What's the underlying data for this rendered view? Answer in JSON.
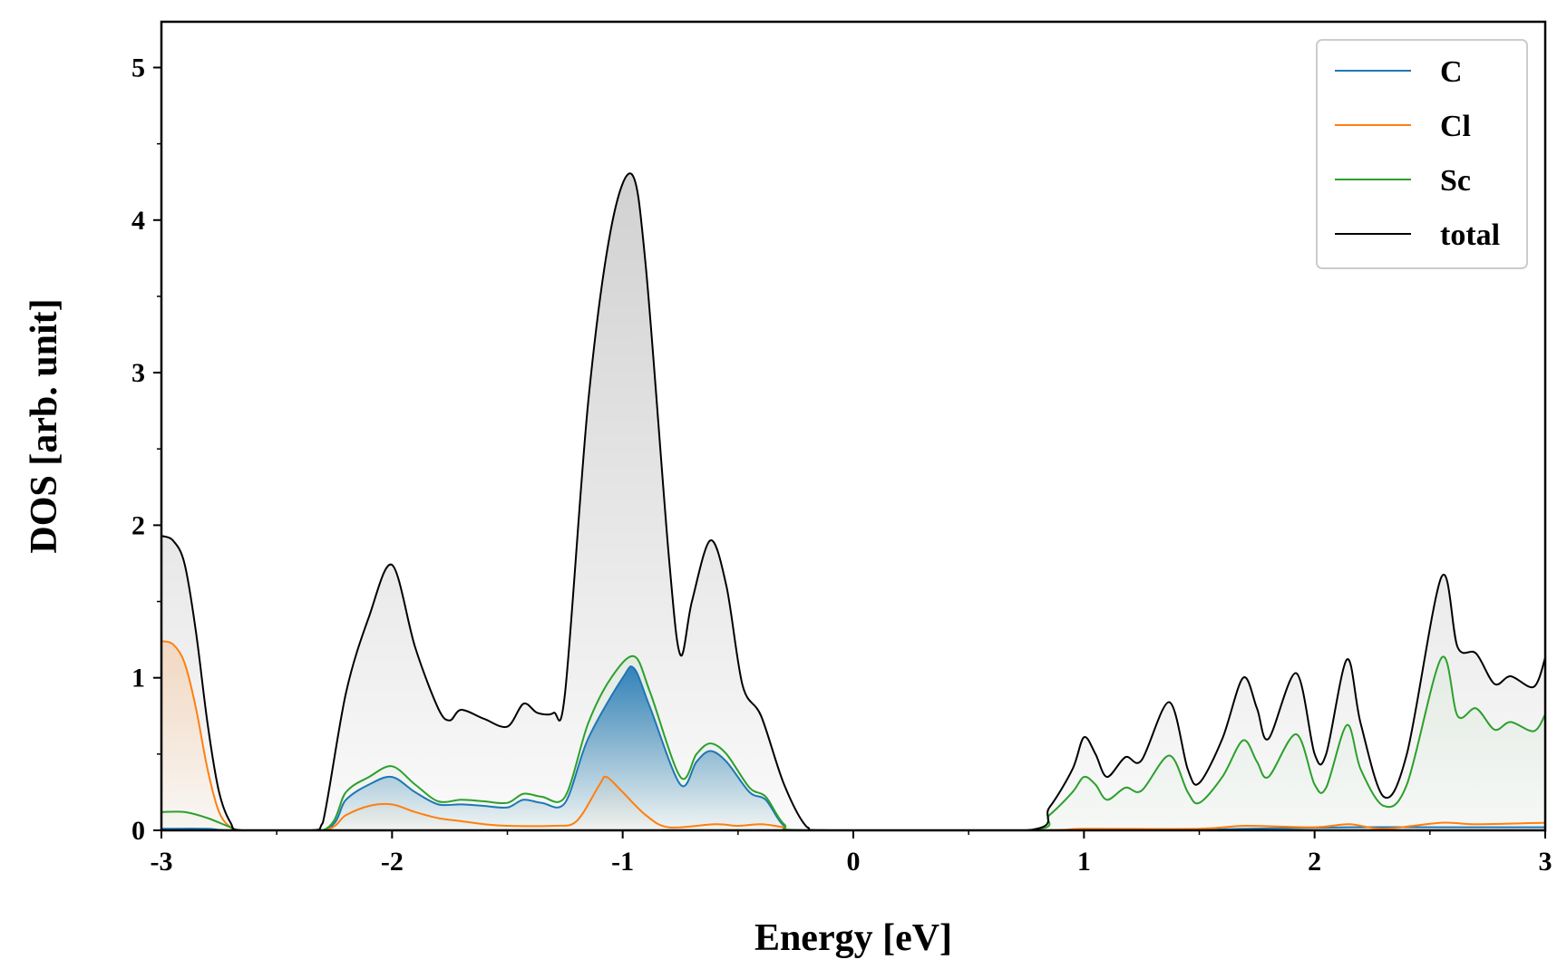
{
  "chart_data": {
    "type": "area",
    "xlabel": "Energy [eV]",
    "ylabel": "DOS [arb. unit]",
    "xlim": [
      -3,
      3
    ],
    "ylim": [
      0,
      5.3
    ],
    "xticks": [
      -3,
      -2,
      -1,
      0,
      1,
      2,
      3
    ],
    "xtick_labels": [
      "-3",
      "-2",
      "-1",
      "0",
      "1",
      "2",
      "3"
    ],
    "yticks": [
      0,
      1,
      2,
      3,
      4,
      5
    ],
    "ytick_labels": [
      "0",
      "1",
      "2",
      "3",
      "4",
      "5"
    ],
    "grid": false,
    "legend_position": "top-right",
    "series": [
      {
        "name": "C",
        "color": "#1f77b4",
        "points": [
          [
            -3.0,
            0.01
          ],
          [
            -2.8,
            0.01
          ],
          [
            -2.7,
            0.0
          ],
          [
            -2.3,
            0.0
          ],
          [
            -2.2,
            0.2
          ],
          [
            -2.1,
            0.3
          ],
          [
            -2.0,
            0.35
          ],
          [
            -1.9,
            0.25
          ],
          [
            -1.8,
            0.17
          ],
          [
            -1.7,
            0.17
          ],
          [
            -1.6,
            0.16
          ],
          [
            -1.5,
            0.15
          ],
          [
            -1.43,
            0.2
          ],
          [
            -1.35,
            0.18
          ],
          [
            -1.25,
            0.18
          ],
          [
            -1.15,
            0.6
          ],
          [
            -1.0,
            1.0
          ],
          [
            -0.95,
            1.06
          ],
          [
            -0.88,
            0.8
          ],
          [
            -0.75,
            0.3
          ],
          [
            -0.68,
            0.45
          ],
          [
            -0.62,
            0.52
          ],
          [
            -0.55,
            0.45
          ],
          [
            -0.45,
            0.25
          ],
          [
            -0.38,
            0.2
          ],
          [
            -0.3,
            0.03
          ],
          [
            -0.2,
            0.0
          ],
          [
            0.8,
            0.0
          ],
          [
            1.0,
            0.0
          ],
          [
            1.4,
            0.0
          ],
          [
            1.7,
            0.01
          ],
          [
            2.15,
            0.02
          ],
          [
            2.55,
            0.02
          ],
          [
            3.0,
            0.02
          ]
        ]
      },
      {
        "name": "Cl",
        "color": "#ff7f0e",
        "points": [
          [
            -3.0,
            1.24
          ],
          [
            -2.95,
            1.22
          ],
          [
            -2.9,
            1.1
          ],
          [
            -2.85,
            0.8
          ],
          [
            -2.8,
            0.4
          ],
          [
            -2.75,
            0.12
          ],
          [
            -2.7,
            0.02
          ],
          [
            -2.65,
            0.0
          ],
          [
            -2.3,
            0.0
          ],
          [
            -2.2,
            0.1
          ],
          [
            -2.1,
            0.16
          ],
          [
            -2.0,
            0.17
          ],
          [
            -1.9,
            0.12
          ],
          [
            -1.8,
            0.08
          ],
          [
            -1.7,
            0.06
          ],
          [
            -1.6,
            0.04
          ],
          [
            -1.5,
            0.03
          ],
          [
            -1.3,
            0.03
          ],
          [
            -1.2,
            0.06
          ],
          [
            -1.1,
            0.3
          ],
          [
            -1.07,
            0.35
          ],
          [
            -1.0,
            0.25
          ],
          [
            -0.9,
            0.1
          ],
          [
            -0.8,
            0.02
          ],
          [
            -0.6,
            0.04
          ],
          [
            -0.5,
            0.03
          ],
          [
            -0.4,
            0.04
          ],
          [
            -0.3,
            0.02
          ],
          [
            -0.2,
            0.0
          ],
          [
            0.8,
            0.0
          ],
          [
            1.0,
            0.01
          ],
          [
            1.5,
            0.01
          ],
          [
            1.7,
            0.03
          ],
          [
            2.0,
            0.02
          ],
          [
            2.15,
            0.04
          ],
          [
            2.3,
            0.01
          ],
          [
            2.55,
            0.05
          ],
          [
            2.7,
            0.04
          ],
          [
            3.0,
            0.05
          ]
        ]
      },
      {
        "name": "Sc",
        "color": "#2ca02c",
        "points": [
          [
            -3.0,
            0.12
          ],
          [
            -2.9,
            0.12
          ],
          [
            -2.8,
            0.08
          ],
          [
            -2.7,
            0.02
          ],
          [
            -2.65,
            0.0
          ],
          [
            -2.3,
            0.0
          ],
          [
            -2.2,
            0.25
          ],
          [
            -2.1,
            0.35
          ],
          [
            -2.0,
            0.42
          ],
          [
            -1.9,
            0.3
          ],
          [
            -1.8,
            0.19
          ],
          [
            -1.7,
            0.2
          ],
          [
            -1.6,
            0.19
          ],
          [
            -1.5,
            0.18
          ],
          [
            -1.43,
            0.24
          ],
          [
            -1.35,
            0.22
          ],
          [
            -1.25,
            0.22
          ],
          [
            -1.15,
            0.7
          ],
          [
            -1.05,
            1.0
          ],
          [
            -0.95,
            1.14
          ],
          [
            -0.88,
            0.9
          ],
          [
            -0.75,
            0.35
          ],
          [
            -0.68,
            0.5
          ],
          [
            -0.62,
            0.57
          ],
          [
            -0.55,
            0.5
          ],
          [
            -0.45,
            0.28
          ],
          [
            -0.38,
            0.22
          ],
          [
            -0.3,
            0.04
          ],
          [
            -0.2,
            0.0
          ],
          [
            0.75,
            0.0
          ],
          [
            0.85,
            0.1
          ],
          [
            0.95,
            0.25
          ],
          [
            1.0,
            0.35
          ],
          [
            1.05,
            0.3
          ],
          [
            1.1,
            0.2
          ],
          [
            1.18,
            0.28
          ],
          [
            1.25,
            0.26
          ],
          [
            1.37,
            0.49
          ],
          [
            1.45,
            0.25
          ],
          [
            1.5,
            0.18
          ],
          [
            1.6,
            0.35
          ],
          [
            1.69,
            0.59
          ],
          [
            1.75,
            0.45
          ],
          [
            1.8,
            0.35
          ],
          [
            1.92,
            0.63
          ],
          [
            2.0,
            0.3
          ],
          [
            2.05,
            0.28
          ],
          [
            2.14,
            0.69
          ],
          [
            2.2,
            0.4
          ],
          [
            2.3,
            0.16
          ],
          [
            2.4,
            0.3
          ],
          [
            2.55,
            1.13
          ],
          [
            2.62,
            0.75
          ],
          [
            2.7,
            0.8
          ],
          [
            2.78,
            0.66
          ],
          [
            2.85,
            0.71
          ],
          [
            2.95,
            0.65
          ],
          [
            3.0,
            0.76
          ]
        ]
      },
      {
        "name": "total",
        "color": "#000000",
        "points": [
          [
            -3.0,
            1.93
          ],
          [
            -2.95,
            1.9
          ],
          [
            -2.9,
            1.75
          ],
          [
            -2.85,
            1.3
          ],
          [
            -2.8,
            0.7
          ],
          [
            -2.75,
            0.25
          ],
          [
            -2.7,
            0.05
          ],
          [
            -2.65,
            0.0
          ],
          [
            -2.35,
            0.0
          ],
          [
            -2.3,
            0.05
          ],
          [
            -2.2,
            0.9
          ],
          [
            -2.1,
            1.4
          ],
          [
            -2.0,
            1.74
          ],
          [
            -1.9,
            1.2
          ],
          [
            -1.8,
            0.8
          ],
          [
            -1.75,
            0.72
          ],
          [
            -1.7,
            0.79
          ],
          [
            -1.6,
            0.73
          ],
          [
            -1.5,
            0.68
          ],
          [
            -1.43,
            0.83
          ],
          [
            -1.37,
            0.77
          ],
          [
            -1.3,
            0.77
          ],
          [
            -1.25,
            0.9
          ],
          [
            -1.15,
            2.8
          ],
          [
            -1.05,
            3.95
          ],
          [
            -0.96,
            4.3
          ],
          [
            -0.9,
            3.7
          ],
          [
            -0.8,
            1.8
          ],
          [
            -0.75,
            1.15
          ],
          [
            -0.7,
            1.5
          ],
          [
            -0.62,
            1.9
          ],
          [
            -0.55,
            1.6
          ],
          [
            -0.48,
            0.95
          ],
          [
            -0.4,
            0.75
          ],
          [
            -0.3,
            0.3
          ],
          [
            -0.2,
            0.02
          ],
          [
            -0.1,
            0.0
          ],
          [
            0.75,
            0.0
          ],
          [
            0.85,
            0.15
          ],
          [
            0.95,
            0.4
          ],
          [
            1.0,
            0.61
          ],
          [
            1.05,
            0.5
          ],
          [
            1.1,
            0.35
          ],
          [
            1.18,
            0.48
          ],
          [
            1.25,
            0.46
          ],
          [
            1.37,
            0.84
          ],
          [
            1.45,
            0.4
          ],
          [
            1.5,
            0.31
          ],
          [
            1.6,
            0.6
          ],
          [
            1.69,
            1.0
          ],
          [
            1.75,
            0.8
          ],
          [
            1.8,
            0.6
          ],
          [
            1.92,
            1.03
          ],
          [
            2.0,
            0.5
          ],
          [
            2.05,
            0.5
          ],
          [
            2.14,
            1.12
          ],
          [
            2.2,
            0.7
          ],
          [
            2.3,
            0.22
          ],
          [
            2.4,
            0.5
          ],
          [
            2.55,
            1.66
          ],
          [
            2.62,
            1.2
          ],
          [
            2.7,
            1.16
          ],
          [
            2.78,
            0.96
          ],
          [
            2.85,
            1.01
          ],
          [
            2.95,
            0.94
          ],
          [
            3.0,
            1.13
          ]
        ]
      }
    ]
  }
}
